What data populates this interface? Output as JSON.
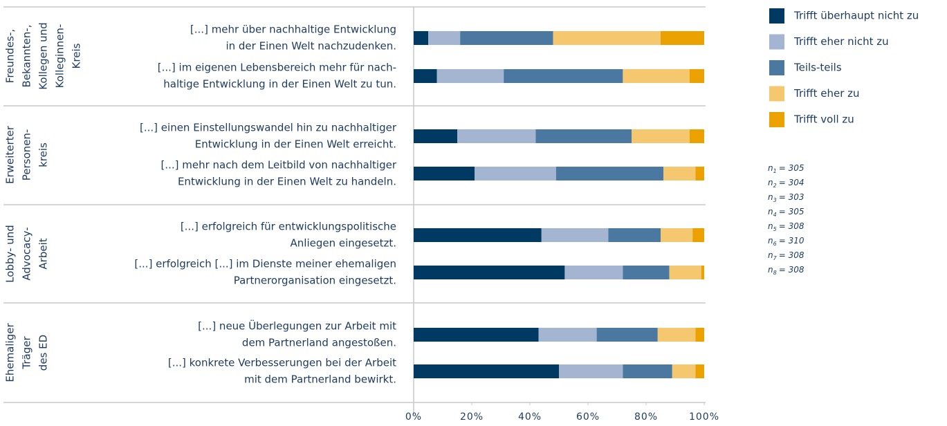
{
  "chart_data": {
    "type": "stacked_barh",
    "groups": [
      {
        "lines": [
          "Freundes-,",
          "Bekannten-,",
          "Kollegen und",
          "Kolleginnen-",
          "Kreis"
        ]
      },
      {
        "lines": [
          "Erweiterter",
          "Personen-",
          "kreis"
        ]
      },
      {
        "lines": [
          "Lobby- und",
          "Advocacy-",
          "Arbeit"
        ]
      },
      {
        "lines": [
          "Ehemaliger",
          "Träger",
          "des ED"
        ]
      }
    ],
    "categories": [
      [
        "[...] mehr über nachhaltige Entwicklung",
        "in der Einen Welt nachzudenken."
      ],
      [
        "[...] im eigenen Lebensbereich mehr für nach-",
        "haltige Entwicklung in der Einen Welt zu tun."
      ],
      [
        "[...] einen Einstellungswandel hin zu nachhaltiger",
        "Entwicklung in der Einen Welt erreicht."
      ],
      [
        "[...] mehr nach dem Leitbild von nachhaltiger",
        "Entwicklung in der Einen Welt zu handeln."
      ],
      [
        "[...] erfolgreich für entwicklungspolitische",
        "Anliegen eingesetzt."
      ],
      [
        "[...] erfolgreich [...] im Dienste meiner ehemaligen",
        "Partnerorganisation eingesetzt."
      ],
      [
        "[...] neue Überlegungen zur Arbeit mit",
        "dem Partnerland angestoßen."
      ],
      [
        "[...] konkrete Verbesserungen bei der Arbeit",
        "mit dem Partnerland bewirkt."
      ]
    ],
    "series": [
      {
        "name": "Trifft überhaupt nicht zu",
        "color": "#003a63",
        "values": [
          5,
          8,
          15,
          21,
          44,
          52,
          43,
          50
        ]
      },
      {
        "name": "Trifft eher nicht zu",
        "color": "#a3b5d0",
        "values": [
          11,
          23,
          27,
          28,
          23,
          20,
          20,
          22
        ]
      },
      {
        "name": "Teils-teils",
        "color": "#4a78a0",
        "values": [
          32,
          41,
          33,
          37,
          18,
          16,
          21,
          17
        ]
      },
      {
        "name": "Trifft eher zu",
        "color": "#f5c870",
        "values": [
          37,
          23,
          20,
          11,
          11,
          11,
          13,
          8
        ]
      },
      {
        "name": "Trifft voll zu",
        "color": "#eba100",
        "values": [
          15,
          5,
          5,
          3,
          4,
          1,
          3,
          3
        ]
      }
    ],
    "xlim": [
      0,
      100
    ],
    "xticks": [
      {
        "value": 0,
        "label": "0%"
      },
      {
        "value": 20,
        "label": "20%"
      },
      {
        "value": 40,
        "label": "40%"
      },
      {
        "value": 60,
        "label": "60%"
      },
      {
        "value": 80,
        "label": "80%"
      },
      {
        "value": 100,
        "label": "100%"
      }
    ],
    "sample_sizes": [
      {
        "symbol": "n",
        "index": "1",
        "label": "= 305"
      },
      {
        "symbol": "n",
        "index": "2",
        "label": "= 304"
      },
      {
        "symbol": "n",
        "index": "3",
        "label": "= 303"
      },
      {
        "symbol": "n",
        "index": "4",
        "label": "= 305"
      },
      {
        "symbol": "n",
        "index": "5",
        "label": "= 308"
      },
      {
        "symbol": "n",
        "index": "6",
        "label": "= 310"
      },
      {
        "symbol": "n",
        "index": "7",
        "label": "= 308"
      },
      {
        "symbol": "n",
        "index": "8",
        "label": "= 308"
      }
    ]
  }
}
